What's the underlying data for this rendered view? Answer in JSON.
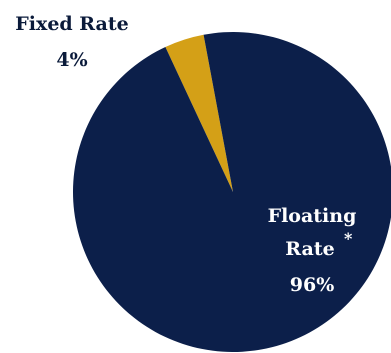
{
  "chart_data": {
    "type": "pie",
    "slices": [
      {
        "label_lines": [
          "Fixed Rate"
        ],
        "marker": "",
        "value_label": "4%",
        "value": 4,
        "color": "#d4a017",
        "label_color": "#0a1a3a"
      },
      {
        "label_lines": [
          "Floating",
          "Rate"
        ],
        "marker": "*",
        "value_label": "96%",
        "value": 96,
        "color": "#0c1f4a",
        "label_color": "#ffffff"
      }
    ]
  }
}
